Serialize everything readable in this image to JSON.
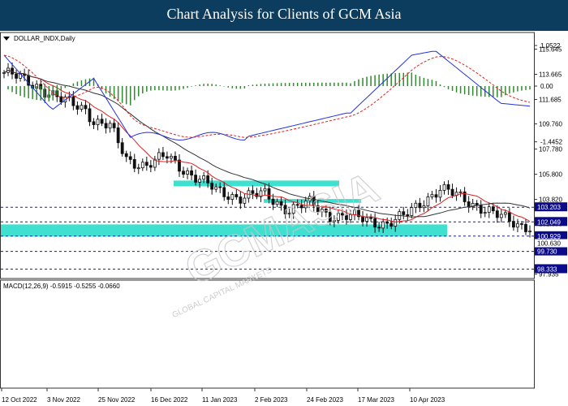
{
  "header": {
    "title": "Chart Analysis for Clients of GCM Asia"
  },
  "chart_data": {
    "type": "candlestick",
    "symbol_label": "DOLLAR_INDX,Daily",
    "watermark": "GCMASIA",
    "watermark_sub": "GLOBAL CAPITAL MARKETS",
    "price_ticks": [
      "115.645",
      "113.665",
      "111.685",
      "109.760",
      "107.780",
      "105.800",
      "103.820",
      "101.895",
      "99.730",
      "97.935"
    ],
    "x_labels": [
      "12 Oct 2022",
      "3 Nov 2022",
      "25 Nov 2022",
      "16 Dec 2022",
      "11 Jan 2023",
      "2 Feb 2023",
      "24 Feb 2023",
      "17 Mar 2023",
      "10 Apr 2023"
    ],
    "levels": [
      {
        "value": 103.203,
        "label": "103.203"
      },
      {
        "value": 102.049,
        "label": "102.049"
      },
      {
        "value": 100.929,
        "label": "100.929"
      },
      {
        "value": 99.73,
        "label": "99.730"
      },
      {
        "value": 98.333,
        "label": "98.333"
      }
    ],
    "current_price_label": "100.630",
    "zones": [
      {
        "from": 104.85,
        "to": 105.3
      },
      {
        "from": 103.55,
        "to": 103.85
      },
      {
        "from": 100.9,
        "to": 101.85
      }
    ],
    "macd": {
      "label": "MACD(12,26,9) -0.5915 -0.5255 -0.0660",
      "ticks": [
        "1.0522",
        "0.00",
        "-1.4452"
      ]
    },
    "colors": {
      "zone": "#40e0d0",
      "fast_ma": "#dd2222",
      "slow_ma": "#333333",
      "histogram": "#2e8b2e",
      "macd_line": "#2233dd",
      "signal_line": "#dd2222",
      "level_line": "#1a1aa0",
      "label_bg": "#0a0a8a"
    }
  }
}
